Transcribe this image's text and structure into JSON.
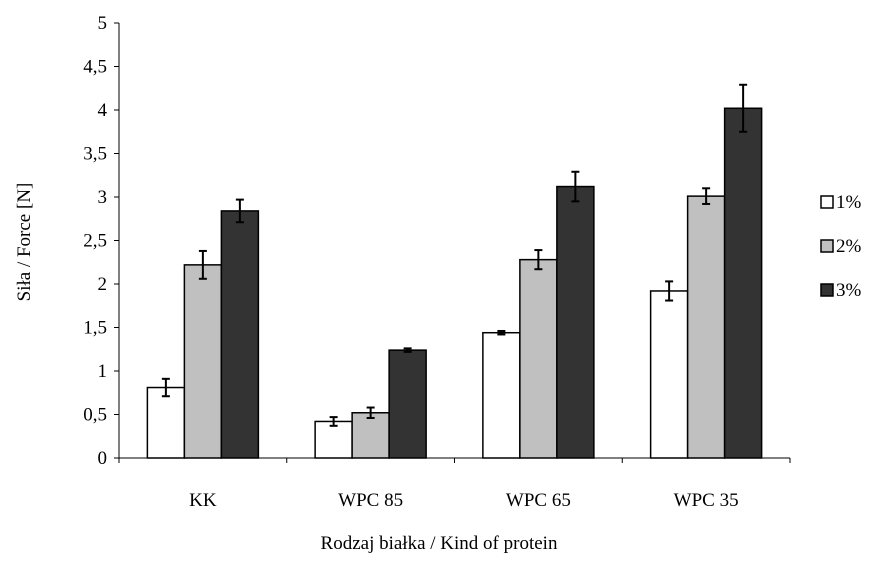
{
  "chart_data": {
    "type": "bar",
    "categories": [
      "KK",
      "WPC 85",
      "WPC 65",
      "WPC 35"
    ],
    "series": [
      {
        "name": "1%",
        "color": "#ffffff",
        "values": [
          0.81,
          0.42,
          1.44,
          1.92
        ],
        "errors": [
          0.1,
          0.05,
          0.02,
          0.11
        ]
      },
      {
        "name": "2%",
        "color": "#c0c0c0",
        "values": [
          2.22,
          0.52,
          2.28,
          3.01
        ],
        "errors": [
          0.16,
          0.06,
          0.11,
          0.09
        ]
      },
      {
        "name": "3%",
        "color": "#333333",
        "values": [
          2.84,
          1.24,
          3.12,
          4.02
        ],
        "errors": [
          0.13,
          0.02,
          0.17,
          0.27
        ]
      }
    ],
    "xlabel": "Rodzaj białka / Kind of protein",
    "ylabel": "Siła / Force [N]",
    "ylim": [
      0,
      5
    ],
    "yticks": [
      "0",
      "0,5",
      "1",
      "1,5",
      "2",
      "2,5",
      "3",
      "3,5",
      "4",
      "4,5",
      "5"
    ],
    "grid": false,
    "legend": "right",
    "error_bars": true
  }
}
